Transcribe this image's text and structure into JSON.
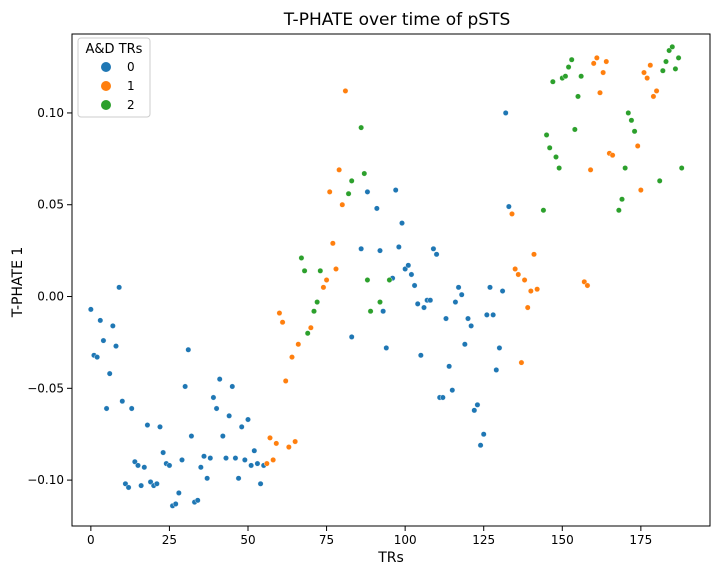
{
  "chart_data": {
    "type": "scatter",
    "title": "T-PHATE over time of pSTS",
    "xlabel": "TRs",
    "ylabel": "T-PHATE 1",
    "xlim": [
      -6,
      197
    ],
    "ylim": [
      -0.125,
      0.143
    ],
    "xticks": [
      0,
      25,
      50,
      75,
      100,
      125,
      150,
      175
    ],
    "yticks": [
      -0.1,
      -0.05,
      0.0,
      0.05,
      0.1
    ],
    "xtick_labels": [
      "0",
      "25",
      "50",
      "75",
      "100",
      "125",
      "150",
      "175"
    ],
    "ytick_labels": [
      "−0.10",
      "−0.05",
      "0.00",
      "0.05",
      "0.10"
    ],
    "grid": false,
    "legend": {
      "title": "A&D TRs",
      "position": "top-left",
      "entries": [
        "0",
        "1",
        "2"
      ]
    },
    "colors": {
      "0": "#1f77b4",
      "1": "#ff7f0e",
      "2": "#2ca02c"
    },
    "series": [
      {
        "name": "0",
        "points": [
          [
            0,
            -0.007
          ],
          [
            1,
            -0.032
          ],
          [
            2,
            -0.033
          ],
          [
            3,
            -0.013
          ],
          [
            4,
            -0.024
          ],
          [
            5,
            -0.061
          ],
          [
            6,
            -0.042
          ],
          [
            7,
            -0.016
          ],
          [
            8,
            -0.027
          ],
          [
            9,
            0.005
          ],
          [
            10,
            -0.057
          ],
          [
            11,
            -0.102
          ],
          [
            12,
            -0.104
          ],
          [
            13,
            -0.061
          ],
          [
            14,
            -0.09
          ],
          [
            15,
            -0.092
          ],
          [
            16,
            -0.103
          ],
          [
            17,
            -0.093
          ],
          [
            18,
            -0.07
          ],
          [
            19,
            -0.101
          ],
          [
            20,
            -0.103
          ],
          [
            21,
            -0.102
          ],
          [
            22,
            -0.071
          ],
          [
            23,
            -0.085
          ],
          [
            24,
            -0.091
          ],
          [
            25,
            -0.092
          ],
          [
            26,
            -0.114
          ],
          [
            27,
            -0.113
          ],
          [
            28,
            -0.107
          ],
          [
            29,
            -0.089
          ],
          [
            30,
            -0.049
          ],
          [
            31,
            -0.029
          ],
          [
            32,
            -0.076
          ],
          [
            33,
            -0.112
          ],
          [
            34,
            -0.111
          ],
          [
            35,
            -0.093
          ],
          [
            36,
            -0.087
          ],
          [
            37,
            -0.099
          ],
          [
            38,
            -0.088
          ],
          [
            39,
            -0.055
          ],
          [
            40,
            -0.061
          ],
          [
            41,
            -0.045
          ],
          [
            42,
            -0.076
          ],
          [
            43,
            -0.088
          ],
          [
            44,
            -0.065
          ],
          [
            45,
            -0.049
          ],
          [
            46,
            -0.088
          ],
          [
            47,
            -0.099
          ],
          [
            48,
            -0.071
          ],
          [
            49,
            -0.089
          ],
          [
            50,
            -0.067
          ],
          [
            51,
            -0.092
          ],
          [
            52,
            -0.084
          ],
          [
            53,
            -0.091
          ],
          [
            54,
            -0.102
          ],
          [
            55,
            -0.092
          ],
          [
            83,
            -0.022
          ],
          [
            86,
            0.026
          ],
          [
            88,
            0.057
          ],
          [
            91,
            0.048
          ],
          [
            92,
            0.025
          ],
          [
            93,
            -0.008
          ],
          [
            94,
            -0.028
          ],
          [
            96,
            0.01
          ],
          [
            97,
            0.058
          ],
          [
            98,
            0.027
          ],
          [
            99,
            0.04
          ],
          [
            100,
            0.015
          ],
          [
            101,
            0.017
          ],
          [
            102,
            0.012
          ],
          [
            103,
            0.006
          ],
          [
            104,
            -0.004
          ],
          [
            105,
            -0.032
          ],
          [
            106,
            -0.006
          ],
          [
            107,
            -0.002
          ],
          [
            108,
            -0.002
          ],
          [
            109,
            0.026
          ],
          [
            110,
            0.023
          ],
          [
            111,
            -0.055
          ],
          [
            112,
            -0.055
          ],
          [
            113,
            -0.012
          ],
          [
            114,
            -0.038
          ],
          [
            115,
            -0.051
          ],
          [
            116,
            -0.003
          ],
          [
            117,
            0.005
          ],
          [
            118,
            0.001
          ],
          [
            119,
            -0.026
          ],
          [
            120,
            -0.012
          ],
          [
            121,
            -0.016
          ],
          [
            122,
            -0.062
          ],
          [
            123,
            -0.059
          ],
          [
            124,
            -0.081
          ],
          [
            125,
            -0.075
          ],
          [
            126,
            -0.01
          ],
          [
            127,
            0.005
          ],
          [
            128,
            -0.01
          ],
          [
            129,
            -0.04
          ],
          [
            130,
            -0.028
          ],
          [
            131,
            0.003
          ],
          [
            132,
            0.1
          ],
          [
            133,
            0.049
          ]
        ]
      },
      {
        "name": "1",
        "points": [
          [
            56,
            -0.091
          ],
          [
            57,
            -0.077
          ],
          [
            58,
            -0.089
          ],
          [
            59,
            -0.08
          ],
          [
            60,
            -0.009
          ],
          [
            61,
            -0.014
          ],
          [
            62,
            -0.046
          ],
          [
            63,
            -0.082
          ],
          [
            64,
            -0.033
          ],
          [
            65,
            -0.079
          ],
          [
            66,
            -0.026
          ],
          [
            70,
            -0.017
          ],
          [
            74,
            0.005
          ],
          [
            75,
            0.009
          ],
          [
            76,
            0.057
          ],
          [
            77,
            0.029
          ],
          [
            78,
            0.015
          ],
          [
            79,
            0.069
          ],
          [
            80,
            0.05
          ],
          [
            81,
            0.112
          ],
          [
            134,
            0.045
          ],
          [
            135,
            0.015
          ],
          [
            136,
            0.012
          ],
          [
            137,
            -0.036
          ],
          [
            138,
            0.009
          ],
          [
            139,
            -0.006
          ],
          [
            140,
            0.003
          ],
          [
            141,
            0.023
          ],
          [
            142,
            0.004
          ],
          [
            157,
            0.008
          ],
          [
            158,
            0.006
          ],
          [
            159,
            0.069
          ],
          [
            160,
            0.127
          ],
          [
            161,
            0.13
          ],
          [
            162,
            0.111
          ],
          [
            163,
            0.122
          ],
          [
            164,
            0.128
          ],
          [
            165,
            0.078
          ],
          [
            166,
            0.077
          ],
          [
            174,
            0.082
          ],
          [
            175,
            0.058
          ],
          [
            176,
            0.122
          ],
          [
            177,
            0.119
          ],
          [
            178,
            0.126
          ],
          [
            179,
            0.109
          ],
          [
            180,
            0.112
          ]
        ]
      },
      {
        "name": "2",
        "points": [
          [
            67,
            0.021
          ],
          [
            68,
            0.014
          ],
          [
            69,
            -0.02
          ],
          [
            71,
            -0.008
          ],
          [
            72,
            -0.003
          ],
          [
            73,
            0.014
          ],
          [
            82,
            0.056
          ],
          [
            83,
            0.063
          ],
          [
            86,
            0.092
          ],
          [
            87,
            0.067
          ],
          [
            88,
            0.009
          ],
          [
            89,
            -0.008
          ],
          [
            92,
            -0.003
          ],
          [
            95,
            0.009
          ],
          [
            144,
            0.047
          ],
          [
            145,
            0.088
          ],
          [
            146,
            0.081
          ],
          [
            147,
            0.117
          ],
          [
            148,
            0.076
          ],
          [
            149,
            0.07
          ],
          [
            150,
            0.119
          ],
          [
            151,
            0.12
          ],
          [
            152,
            0.125
          ],
          [
            153,
            0.129
          ],
          [
            154,
            0.091
          ],
          [
            155,
            0.109
          ],
          [
            156,
            0.12
          ],
          [
            168,
            0.047
          ],
          [
            169,
            0.053
          ],
          [
            170,
            0.07
          ],
          [
            171,
            0.1
          ],
          [
            172,
            0.096
          ],
          [
            173,
            0.09
          ],
          [
            181,
            0.063
          ],
          [
            182,
            0.123
          ],
          [
            183,
            0.128
          ],
          [
            184,
            0.134
          ],
          [
            185,
            0.136
          ],
          [
            186,
            0.124
          ],
          [
            187,
            0.13
          ],
          [
            188,
            0.07
          ]
        ]
      }
    ]
  }
}
